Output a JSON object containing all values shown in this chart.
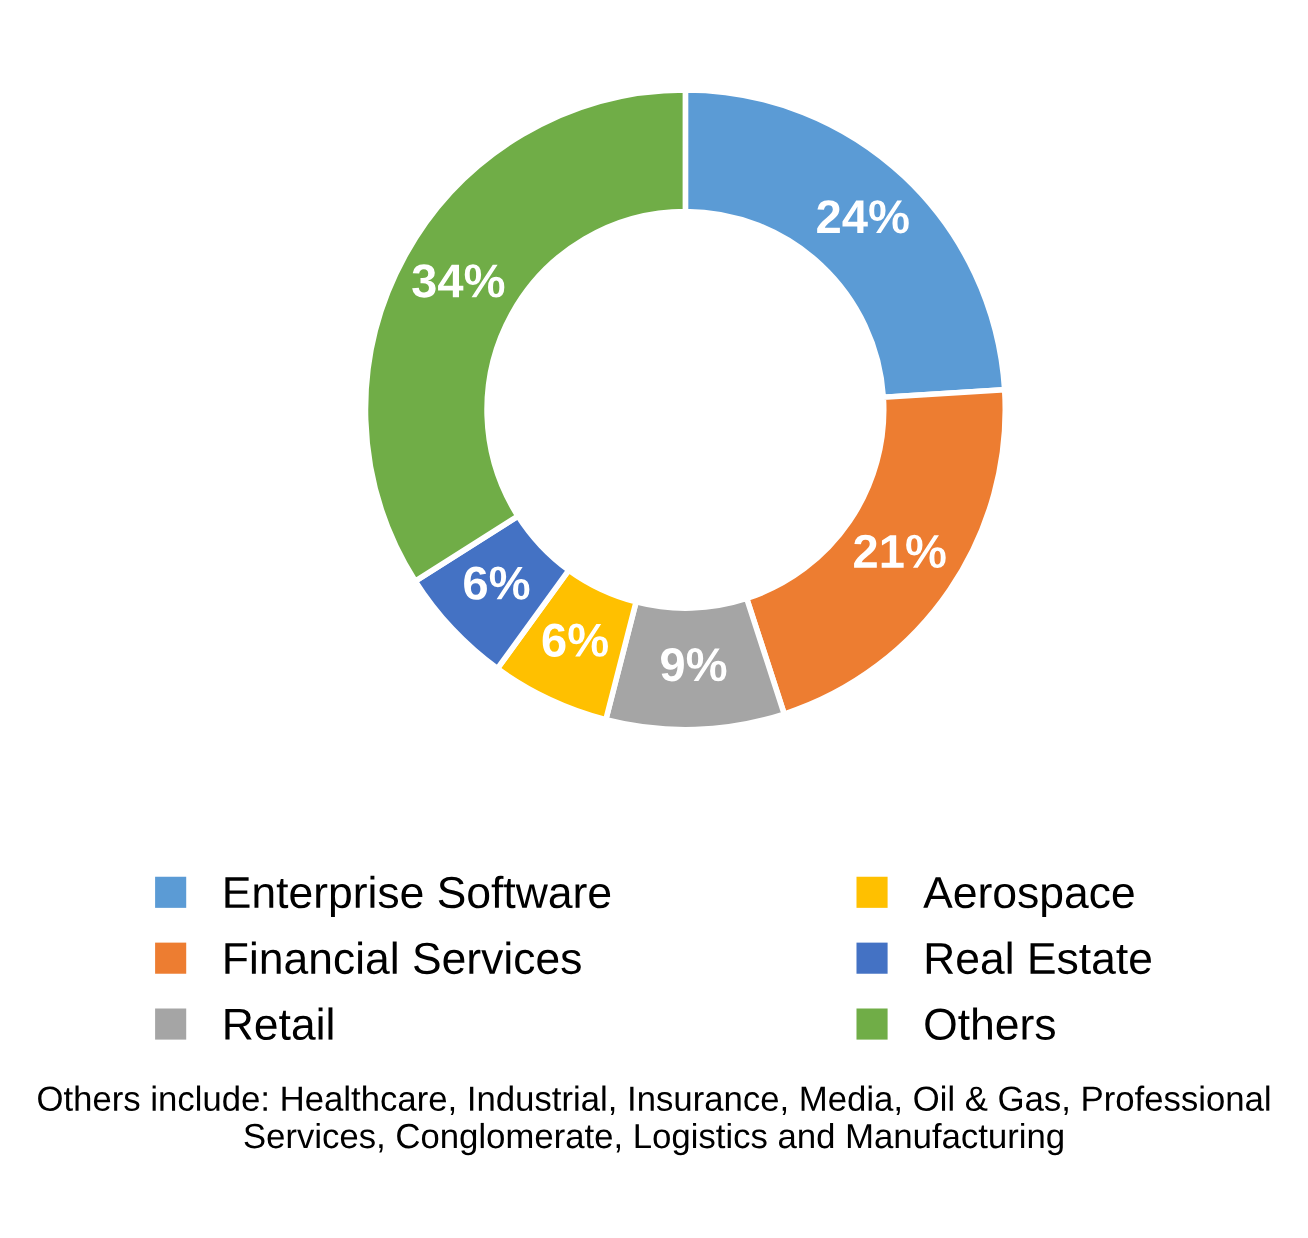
{
  "chart_data": {
    "type": "donut",
    "categories": [
      "Enterprise Software",
      "Financial Services",
      "Retail",
      "Aerospace",
      "Real Estate",
      "Others"
    ],
    "values": [
      24,
      21,
      9,
      6,
      6,
      34
    ],
    "colors": [
      "#5b9bd5",
      "#ed7d31",
      "#a5a5a5",
      "#ffc000",
      "#4472c4",
      "#70ad47"
    ],
    "value_labels": [
      "24%",
      "21%",
      "9%",
      "6%",
      "6%",
      "34%"
    ],
    "legend": "bottom",
    "annotations": [
      "Others include: Healthcare, Industrial, Insurance, Media, Oil & Gas, Professional Services, Conglomerate, Logistics and Manufacturing"
    ]
  }
}
